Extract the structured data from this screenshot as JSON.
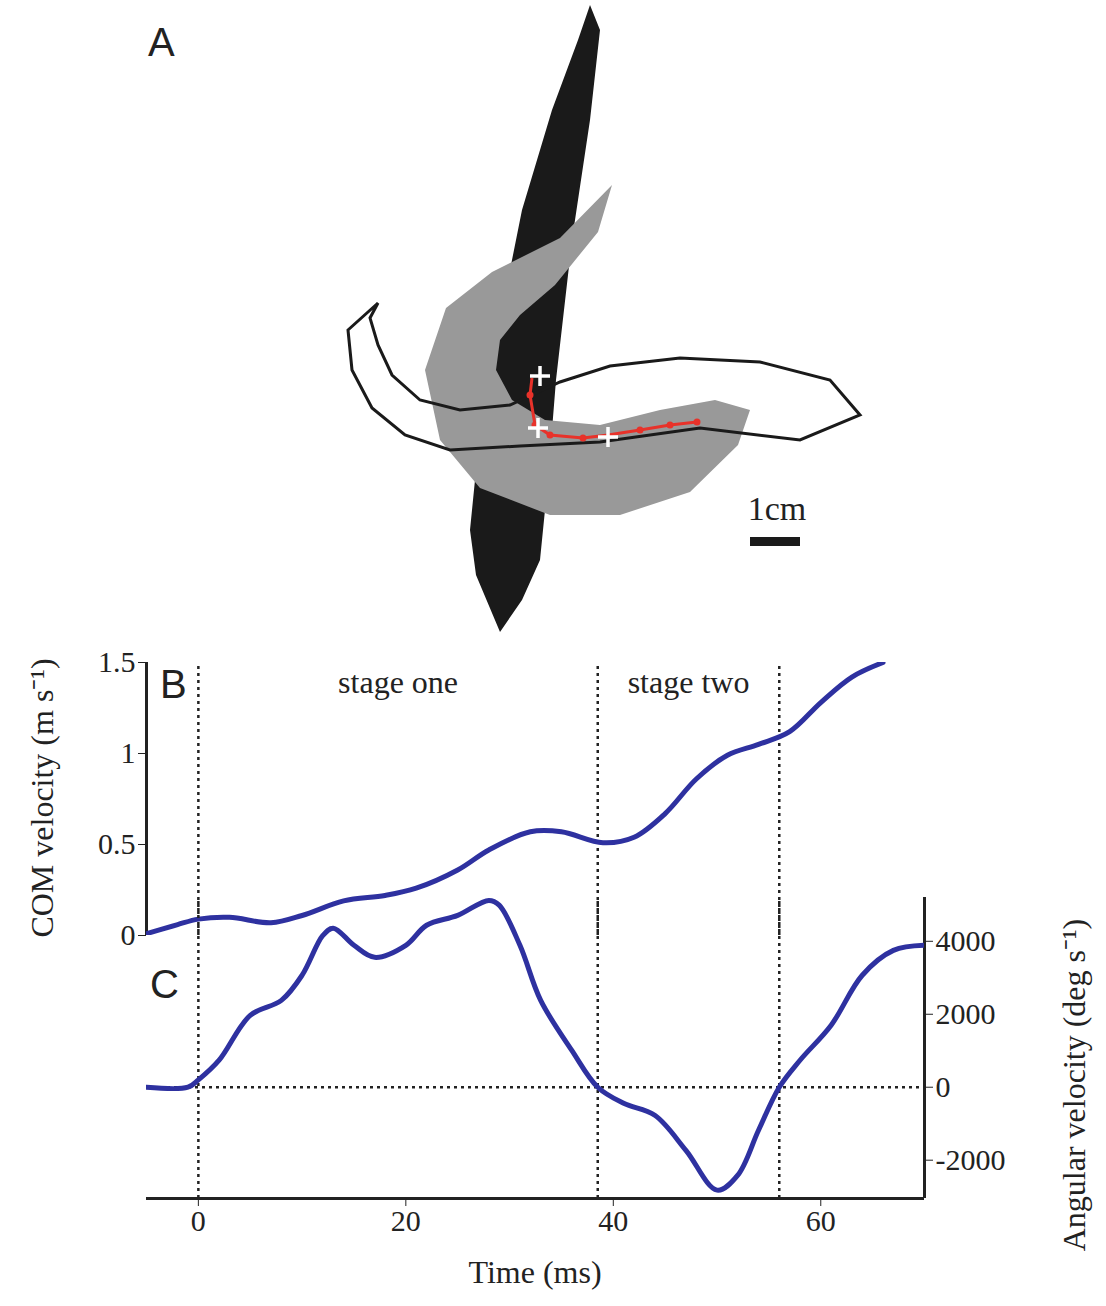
{
  "diagram": {
    "label": "A",
    "scale_bar_label": "1cm"
  },
  "chart_data": [
    {
      "type": "line",
      "panel": "B",
      "x": [
        -5,
        -2,
        0,
        3,
        7,
        10,
        14,
        18,
        21,
        25,
        28,
        32,
        35,
        39,
        42,
        45,
        48,
        51,
        54,
        57,
        60,
        63,
        66
      ],
      "series": [
        {
          "color": "#2e31a0",
          "values": [
            0.01,
            0.06,
            0.09,
            0.1,
            0.07,
            0.11,
            0.19,
            0.22,
            0.26,
            0.36,
            0.47,
            0.57,
            0.57,
            0.51,
            0.54,
            0.67,
            0.86,
            0.99,
            1.05,
            1.12,
            1.28,
            1.42,
            1.5
          ]
        }
      ],
      "xlim": [
        -5,
        70
      ],
      "ylim": [
        0,
        1.5
      ],
      "yticks": [
        0,
        0.5,
        1,
        1.5
      ],
      "ylabel": "COM velocity (m s⁻¹)",
      "tick_labels": "y",
      "stages": [
        {
          "label": "stage one",
          "start": 0,
          "end": 38.5
        },
        {
          "label": "stage two",
          "start": 38.5,
          "end": 56
        }
      ]
    },
    {
      "type": "line",
      "panel": "C",
      "x": [
        -5,
        -1,
        0,
        2,
        5,
        8,
        10,
        12,
        13,
        15,
        17,
        20,
        22,
        25,
        28,
        29,
        31,
        33,
        36,
        38.5,
        41,
        44,
        47,
        50,
        52,
        54,
        56,
        58,
        61,
        64,
        67,
        70
      ],
      "series": [
        {
          "color": "#2e31a0",
          "axis": "y2",
          "values": [
            0,
            0,
            200,
            740,
            1970,
            2380,
            3070,
            4160,
            4360,
            3890,
            3560,
            3890,
            4440,
            4710,
            5120,
            4990,
            3890,
            2380,
            1010,
            0,
            -440,
            -770,
            -1730,
            -2820,
            -2410,
            -1180,
            0,
            740,
            1700,
            3070,
            3750,
            3890
          ]
        }
      ],
      "xlim": [
        -5,
        70
      ],
      "xticks": [
        0,
        20,
        40,
        60
      ],
      "xlabel": "Time (ms)",
      "y2lim": [
        -3050,
        5200
      ],
      "y2ticks": [
        -2000,
        0,
        2000,
        4000
      ],
      "y2label": "Angular velocity (deg s⁻¹)",
      "vlines": [
        0,
        38.5,
        56
      ],
      "hlines": [
        0
      ]
    }
  ]
}
